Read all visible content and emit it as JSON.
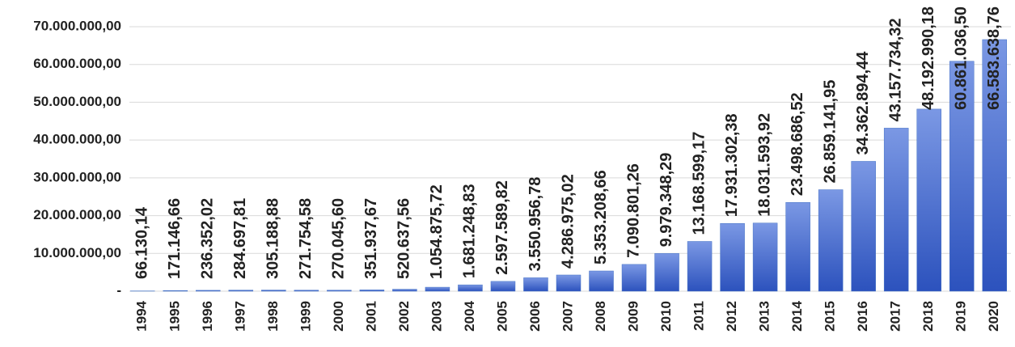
{
  "chart_data": {
    "type": "bar",
    "categories": [
      "1994",
      "1995",
      "1996",
      "1997",
      "1998",
      "1999",
      "2000",
      "2001",
      "2002",
      "2003",
      "2004",
      "2005",
      "2006",
      "2007",
      "2008",
      "2009",
      "2010",
      "2011",
      "2012",
      "2013",
      "2014",
      "2015",
      "2016",
      "2017",
      "2018",
      "2019",
      "2020"
    ],
    "values": [
      66130.14,
      171146.66,
      236352.02,
      284697.81,
      305188.88,
      271754.58,
      270045.6,
      351937.67,
      520637.56,
      1054875.72,
      1681248.83,
      2597589.82,
      3550956.78,
      4286975.02,
      5353208.66,
      7090801.26,
      9979348.29,
      13168599.17,
      17931302.38,
      18031593.92,
      23498686.52,
      26859141.95,
      34362894.44,
      43157734.32,
      48192990.18,
      60861036.5,
      66583638.76
    ],
    "value_labels": [
      "66.130,14",
      "171.146,66",
      "236.352,02",
      "284.697,81",
      "305.188,88",
      "271.754,58",
      "270.045,60",
      "351.937,67",
      "520.637,56",
      "1.054.875,72",
      "1.681.248,83",
      "2.597.589,82",
      "3.550.956,78",
      "4.286.975,02",
      "5.353.208,66",
      "7.090.801,26",
      "9.979.348,29",
      "13.168.599,17",
      "17.931.302,38",
      "18.031.593,92",
      "23.498.686,52",
      "26.859.141,95",
      "34.362.894,44",
      "43.157.734,32",
      "48.192.990,18",
      "60.861.036,50",
      "66.583.638,76"
    ],
    "color": "#4472c4",
    "ylim": [
      0,
      70000000
    ],
    "yticks": [
      {
        "value": 0,
        "label": "-"
      },
      {
        "value": 10000000,
        "label": "10.000.000,00"
      },
      {
        "value": 20000000,
        "label": "20.000.000,00"
      },
      {
        "value": 30000000,
        "label": "30.000.000,00"
      },
      {
        "value": 40000000,
        "label": "40.000.000,00"
      },
      {
        "value": 50000000,
        "label": "50.000.000,00"
      },
      {
        "value": 60000000,
        "label": "60.000.000,00"
      },
      {
        "value": 70000000,
        "label": "70.000.000,00"
      }
    ],
    "grid": true
  }
}
